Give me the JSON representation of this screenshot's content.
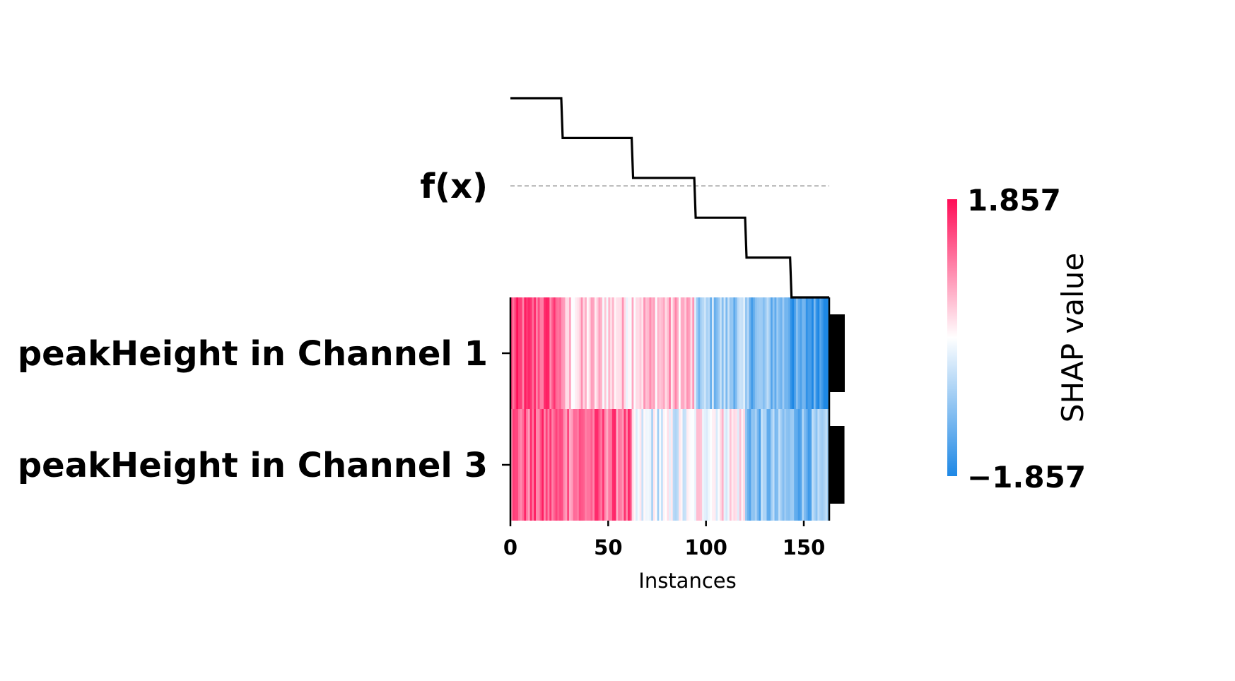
{
  "chart_data": {
    "type": "heatmap",
    "title": "",
    "xlabel": "Instances",
    "fx_label": "f(x)",
    "features": [
      "peakHeight in Channel 1",
      "peakHeight in Channel 3"
    ],
    "x_ticks": [
      "0",
      "50",
      "100",
      "150"
    ],
    "x_tick_values": [
      0,
      50,
      100,
      150
    ],
    "xlim": [
      0,
      163
    ],
    "instance_count": 163,
    "fx_levels": [
      {
        "start": 0,
        "end": 26,
        "value": 5
      },
      {
        "start": 26,
        "end": 62,
        "value": 4
      },
      {
        "start": 62,
        "end": 94,
        "value": 3
      },
      {
        "start": 94,
        "end": 120,
        "value": 2
      },
      {
        "start": 120,
        "end": 143,
        "value": 1
      },
      {
        "start": 143,
        "end": 163,
        "value": 0
      }
    ],
    "fx_baseline": 2.8,
    "feature_importance": [
      1.0,
      0.98
    ],
    "colorbar": {
      "label": "SHAP value",
      "max_label": "1.857",
      "min_label": "−1.857",
      "max": 1.857,
      "min": -1.857,
      "color_high": "#ff0d57",
      "color_mid": "#ffffff",
      "color_low": "#1e88e5"
    },
    "segments": [
      [
        {
          "start": 0,
          "end": 26,
          "value": 1.3
        },
        {
          "start": 26,
          "end": 62,
          "value": 0.35
        },
        {
          "start": 62,
          "end": 94,
          "value": 0.5
        },
        {
          "start": 94,
          "end": 120,
          "value": -0.8
        },
        {
          "start": 120,
          "end": 143,
          "value": -1.0
        },
        {
          "start": 143,
          "end": 163,
          "value": -1.5
        }
      ],
      [
        {
          "start": 0,
          "end": 26,
          "value": 1.2
        },
        {
          "start": 26,
          "end": 62,
          "value": 1.15
        },
        {
          "start": 62,
          "end": 94,
          "value": -0.25
        },
        {
          "start": 94,
          "end": 120,
          "value": 0.15
        },
        {
          "start": 120,
          "end": 143,
          "value": -1.0
        },
        {
          "start": 143,
          "end": 163,
          "value": -1.05
        }
      ]
    ]
  }
}
